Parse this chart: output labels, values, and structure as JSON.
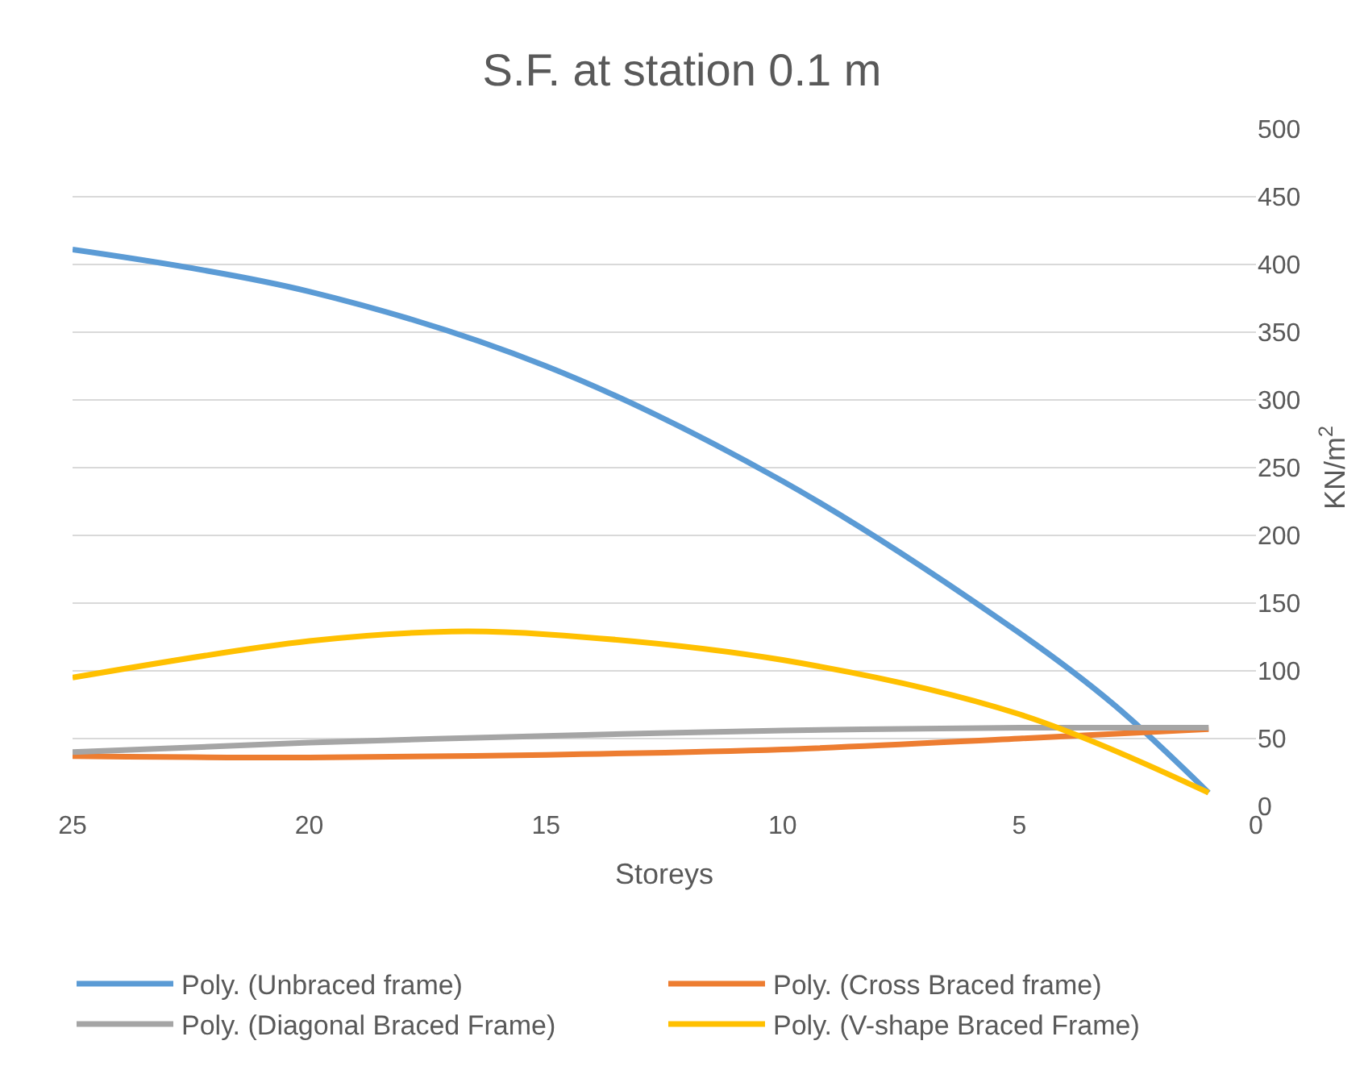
{
  "chart_data": {
    "type": "line",
    "title": "S.F. at station 0.1 m",
    "xlabel": "Storeys",
    "ylabel": "KN/m$^{2}$",
    "xlim": [
      25,
      0
    ],
    "xticks": [
      25,
      20,
      15,
      10,
      5,
      0
    ],
    "ylim": [
      0,
      500
    ],
    "yticks": [
      0,
      50,
      100,
      150,
      200,
      250,
      300,
      350,
      400,
      450,
      500
    ],
    "grid": "y",
    "legend": "bottom",
    "marker": "none",
    "line_style": "solid",
    "series": [
      {
        "name": "Poly. (Unbraced frame)",
        "color": "#5b9bd5",
        "x": [
          25,
          20,
          15,
          10,
          5,
          3,
          1
        ],
        "values": [
          411,
          380,
          325,
          240,
          128,
          75,
          10
        ]
      },
      {
        "name": "Poly. (Cross Braced frame)",
        "color": "#ed7d31",
        "x": [
          25,
          20,
          15,
          10,
          5,
          1
        ],
        "values": [
          37,
          36,
          38,
          42,
          50,
          57
        ]
      },
      {
        "name": "Poly. (Diagonal Braced Frame)",
        "color": "#a5a5a5",
        "x": [
          25,
          20,
          15,
          10,
          5,
          1
        ],
        "values": [
          40,
          47,
          52,
          56,
          58,
          58
        ]
      },
      {
        "name": "Poly. (V-shape Braced Frame)",
        "color": "#ffc000",
        "x": [
          25,
          20,
          17,
          15,
          10,
          5,
          1
        ],
        "values": [
          95,
          122,
          129,
          127,
          108,
          68,
          10
        ]
      }
    ]
  }
}
